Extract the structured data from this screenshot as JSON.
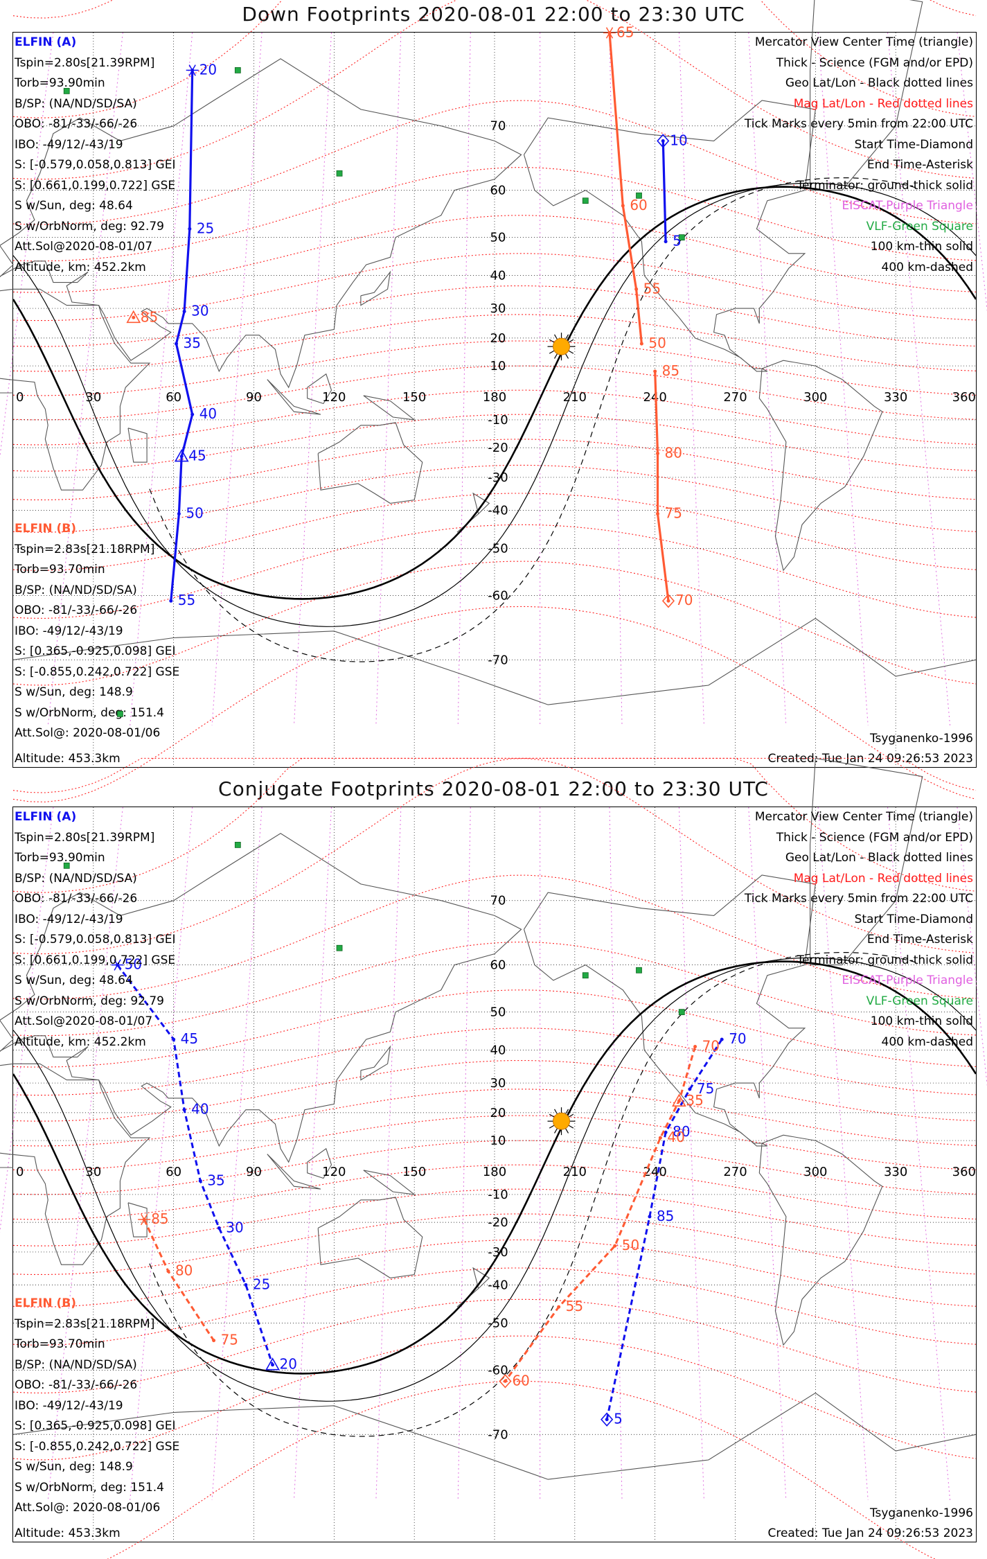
{
  "panels": [
    {
      "title": "Down Footprints 2020-08-01 22:00 to 23:30 UTC",
      "elfin_a": {
        "header": "ELFIN (A)",
        "lines": [
          "Tspin=2.80s[21.39RPM]",
          "Torb=93.90min",
          "B/SP: (NA/ND/SD/SA)",
          "OBO: -81/-33/-66/-26",
          "IBO: -49/12/-43/19",
          "S: [-0.579,0.058,0.813] GEI",
          "S: [0.661,0.199,0.722] GSE",
          "S w/Sun, deg: 48.64",
          "S w/OrbNorm, deg: 92.79",
          "Att.Sol@2020-08-01/07",
          "Altitude, km: 452.2km"
        ]
      },
      "elfin_b": {
        "header": "ELFIN (B)",
        "lines": [
          "Tspin=2.83s[21.18RPM]",
          "Torb=93.70min",
          "B/SP: (NA/ND/SD/SA)",
          "OBO: -81/-33/-66/-26",
          "IBO: -49/12/-43/19",
          "S: [0.365,-0.925,0.098] GEI",
          "S: [-0.855,0.242,0.722] GSE",
          "S w/Sun, deg: 148.9",
          "S w/OrbNorm, deg: 151.4",
          "Att.Sol@: 2020-08-01/06",
          "Altitude: 453.3km"
        ]
      },
      "legend": {
        "l1": "Mercator View Center Time (triangle)",
        "l2": "Thick - Science (FGM and/or EPD)",
        "l3": "Geo Lat/Lon - Black dotted lines",
        "l4": "Mag Lat/Lon - Red dotted lines",
        "l5": "Tick Marks every 5min from 22:00 UTC",
        "l6": "Start Time-Diamond",
        "l7": "End Time-Asterisk",
        "l8": "Terminator: ground-thick solid",
        "l9": "EISCAT-Purple Triangle",
        "l10": "VLF-Green Square",
        "l11": "100 km-thin solid",
        "l12": "400 km-dashed"
      },
      "model": "Tsyganenko-1996",
      "created": "Created: Tue Jan 24 09:26:53 2023",
      "track_a": {
        "style": "solid",
        "ticks": [
          {
            "label": "20",
            "lon": 67,
            "lat": 76
          },
          {
            "label": "25",
            "lon": 66,
            "lat": 52
          },
          {
            "label": "30",
            "lon": 64,
            "lat": 29
          },
          {
            "label": "35",
            "lon": 61,
            "lat": 18
          },
          {
            "label": "40",
            "lon": 67,
            "lat": -8
          },
          {
            "label": "45",
            "lon": 63,
            "lat": -23
          },
          {
            "label": "50",
            "lon": 62,
            "lat": -41
          },
          {
            "label": "55",
            "lon": 59,
            "lat": -61
          },
          {
            "label": "5",
            "lon": 244,
            "lat": 49
          },
          {
            "label": "10",
            "lon": 243,
            "lat": 68
          }
        ]
      },
      "track_b": {
        "style": "solid",
        "ticks": [
          {
            "label": "65",
            "lon": 223,
            "lat": 79
          },
          {
            "label": "60",
            "lon": 228,
            "lat": 57
          },
          {
            "label": "55",
            "lon": 233,
            "lat": 36
          },
          {
            "label": "50",
            "lon": 235,
            "lat": 18
          },
          {
            "label": "85",
            "lon": 45,
            "lat": 27
          },
          {
            "label": "85",
            "lon": 240,
            "lat": 8
          },
          {
            "label": "80",
            "lon": 241,
            "lat": -22
          },
          {
            "label": "75",
            "lon": 241,
            "lat": -41
          },
          {
            "label": "70",
            "lon": 245,
            "lat": -61
          }
        ]
      }
    },
    {
      "title": "Conjugate Footprints 2020-08-01 22:00 to 23:30 UTC",
      "elfin_a": {
        "header": "ELFIN (A)",
        "lines": [
          "Tspin=2.80s[21.39RPM]",
          "Torb=93.90min",
          "B/SP: (NA/ND/SD/SA)",
          "OBO: -81/-33/-66/-26",
          "IBO: -49/12/-43/19",
          "S: [-0.579,0.058,0.813] GEI",
          "S: [0.661,0.199,0.722] GSE",
          "S w/Sun, deg: 48.64",
          "S w/OrbNorm, deg: 92.79",
          "Att.Sol@2020-08-01/07",
          "Altitude, km: 452.2km"
        ]
      },
      "elfin_b": {
        "header": "ELFIN (B)",
        "lines": [
          "Tspin=2.83s[21.18RPM]",
          "Torb=93.70min",
          "B/SP: (NA/ND/SD/SA)",
          "OBO: -81/-33/-66/-26",
          "IBO: -49/12/-43/19",
          "S: [0.365,-0.925,0.098] GEI",
          "S: [-0.855,0.242,0.722] GSE",
          "S w/Sun, deg: 148.9",
          "S w/OrbNorm, deg: 151.4",
          "Att.Sol@: 2020-08-01/06",
          "Altitude: 453.3km"
        ]
      },
      "legend": {
        "l1": "Mercator View Center Time (triangle)",
        "l2": "Thick - Science (FGM and/or EPD)",
        "l3": "Geo Lat/Lon - Black dotted lines",
        "l4": "Mag Lat/Lon - Red dotted lines",
        "l5": "Tick Marks every 5min from 22:00 UTC",
        "l6": "Start Time-Diamond",
        "l7": "End Time-Asterisk",
        "l8": "Terminator: ground-thick solid",
        "l9": "EISCAT-Purple Triangle",
        "l10": "VLF-Green Square",
        "l11": "100 km-thin solid",
        "l12": "400 km-dashed"
      },
      "model": "Tsyganenko-1996",
      "created": "Created: Tue Jan 24 09:26:53 2023",
      "track_a": {
        "style": "dashed",
        "ticks": [
          {
            "label": "50",
            "lon": 39,
            "lat": 60
          },
          {
            "label": "45",
            "lon": 60,
            "lat": 43
          },
          {
            "label": "40",
            "lon": 64,
            "lat": 21
          },
          {
            "label": "35",
            "lon": 70,
            "lat": -5
          },
          {
            "label": "30",
            "lon": 77,
            "lat": -22
          },
          {
            "label": "25",
            "lon": 87,
            "lat": -40
          },
          {
            "label": "20",
            "lon": 97,
            "lat": -59
          },
          {
            "label": "70",
            "lon": 265,
            "lat": 43
          },
          {
            "label": "75",
            "lon": 253,
            "lat": 28
          },
          {
            "label": "80",
            "lon": 244,
            "lat": 13
          },
          {
            "label": "85",
            "lon": 238,
            "lat": -18
          },
          {
            "label": "5",
            "lon": 222,
            "lat": -68
          }
        ]
      },
      "track_b": {
        "style": "dashed",
        "ticks": [
          {
            "label": "85",
            "lon": 49,
            "lat": -19
          },
          {
            "label": "80",
            "lon": 58,
            "lat": -36
          },
          {
            "label": "75",
            "lon": 75,
            "lat": -54
          },
          {
            "label": "70",
            "lon": 255,
            "lat": 41
          },
          {
            "label": "35",
            "lon": 249,
            "lat": 24
          },
          {
            "label": "40",
            "lon": 242,
            "lat": 11
          },
          {
            "label": "50",
            "lon": 225,
            "lat": -28
          },
          {
            "label": "55",
            "lon": 204,
            "lat": -46
          },
          {
            "label": "60",
            "lon": 184,
            "lat": -62
          }
        ]
      }
    }
  ],
  "axes": {
    "lon_ticks": [
      "0",
      "30",
      "60",
      "90",
      "120",
      "150",
      "180",
      "210",
      "240",
      "270",
      "300",
      "330",
      "360"
    ],
    "lat_ticks": [
      "70",
      "60",
      "50",
      "40",
      "30",
      "20",
      "10",
      "-10",
      "-20",
      "-30",
      "-40",
      "-50",
      "-60",
      "-70"
    ]
  },
  "colors": {
    "elfin_a": "#1010ee",
    "elfin_b": "#ff5a33",
    "mag_grid": "#ff2020",
    "geo_grid": "#000000",
    "eiscat": "#e070e0",
    "vlf": "#22aa44",
    "sun": "#ffaa00"
  }
}
